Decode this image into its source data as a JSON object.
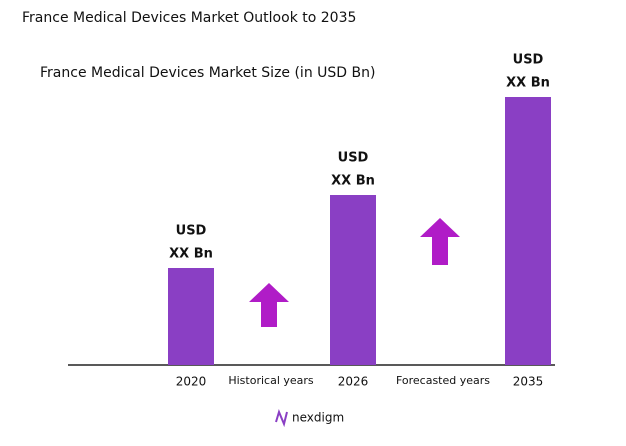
{
  "chart_data": {
    "type": "bar",
    "title": "France Medical Devices Market Outlook to 2035",
    "subtitle": "France Medical Devices Market Size (in USD Bn)",
    "categories": [
      "2020",
      "2026",
      "2035"
    ],
    "values": [
      97,
      170,
      268
    ],
    "value_labels": [
      [
        "USD",
        "XX Bn"
      ],
      [
        "USD",
        "XX Bn"
      ],
      [
        "USD",
        "XX Bn"
      ]
    ],
    "color": "#8a3fc4",
    "annotations": [
      "Historical years",
      "Forecasted years"
    ]
  },
  "logo": "nexdigm"
}
